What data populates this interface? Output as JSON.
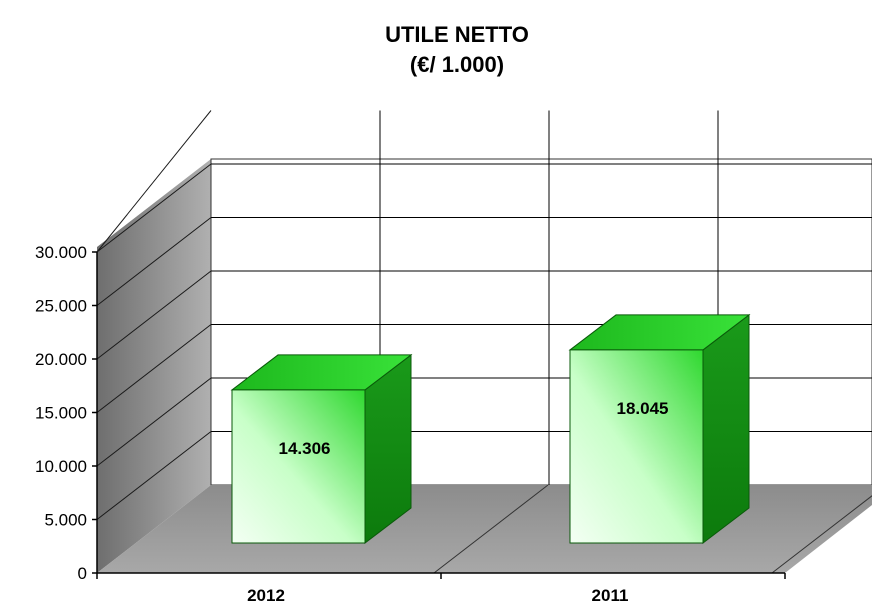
{
  "chart_data": {
    "type": "bar",
    "title": [
      "UTILE NETTO",
      "(€/ 1.000)"
    ],
    "categories": [
      "2012",
      "2011"
    ],
    "values": [
      14306,
      18045
    ],
    "value_labels": [
      "14.306",
      "18.045"
    ],
    "yticks": [
      "0",
      "5.000",
      "10.000",
      "15.000",
      "20.000",
      "25.000",
      "30.000"
    ],
    "ylim": [
      0,
      30000
    ],
    "ystep": 5000,
    "grid": true,
    "three_d": true,
    "legend": "none",
    "colors": {
      "bar_front_light": "#f2fff2",
      "bar_front_dark": "#33dd33",
      "bar_top": "#22cc22",
      "bar_side": "#0f8f0f",
      "back_wall": "#ffffff",
      "side_wall": "#8a8a8a",
      "floor": "#9a9a9a",
      "grid": "#000000"
    }
  }
}
